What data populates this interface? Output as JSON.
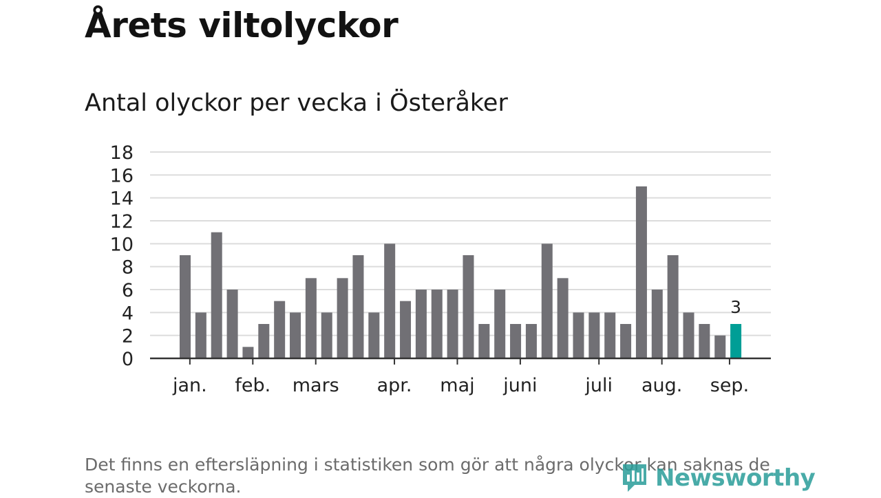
{
  "header": {
    "title": "Årets viltolyckor",
    "subtitle": "Antal olyckor per vecka i Österåker"
  },
  "footer": {
    "note": "Det finns en eftersläpning i statistiken som gör att några olyckor kan saknas de senaste veckorna.",
    "brand": "Newsworthy",
    "brand_icon": "newsworthy-logo-icon"
  },
  "colors": {
    "bar": "#717075",
    "highlight": "#009e96",
    "grid": "#dcdcdc",
    "axis": "#333333",
    "brand": "#2a9d99"
  },
  "chart_data": {
    "type": "bar",
    "title": "Antal olyckor per vecka i Österåker",
    "xlabel": "",
    "ylabel": "",
    "ylim": [
      0,
      18
    ],
    "yticks": [
      0,
      2,
      4,
      6,
      8,
      10,
      12,
      14,
      16,
      18
    ],
    "grid": true,
    "values": [
      9,
      4,
      11,
      6,
      1,
      3,
      5,
      4,
      7,
      4,
      7,
      9,
      4,
      10,
      5,
      6,
      6,
      6,
      9,
      3,
      6,
      3,
      3,
      10,
      7,
      4,
      4,
      4,
      3,
      15,
      6,
      9,
      4,
      3,
      2,
      3
    ],
    "month_ticks": [
      {
        "label": "jan.",
        "week": 0.3
      },
      {
        "label": "feb.",
        "week": 4.3
      },
      {
        "label": "mars",
        "week": 8.3
      },
      {
        "label": "apr.",
        "week": 13.3
      },
      {
        "label": "maj",
        "week": 17.3
      },
      {
        "label": "juni",
        "week": 21.3
      },
      {
        "label": "juli",
        "week": 26.3
      },
      {
        "label": "aug.",
        "week": 30.3
      },
      {
        "label": "sep.",
        "week": 34.6
      }
    ],
    "highlight_index": 35,
    "highlight_label": "3"
  }
}
